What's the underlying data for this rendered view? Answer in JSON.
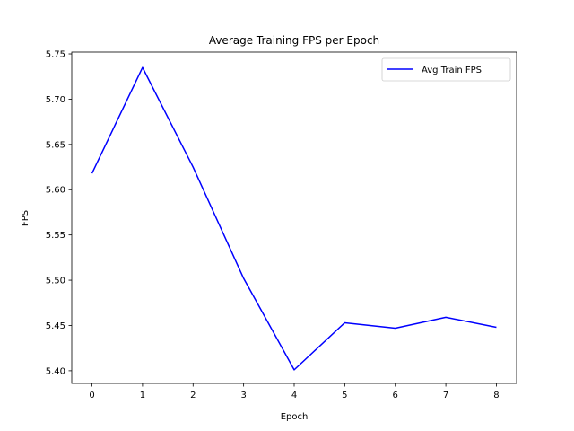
{
  "chart_data": {
    "type": "line",
    "title": "Average Training FPS per Epoch",
    "xlabel": "Epoch",
    "ylabel": "FPS",
    "x": [
      0,
      1,
      2,
      3,
      4,
      5,
      6,
      7,
      8
    ],
    "series": [
      {
        "name": "Avg Train FPS",
        "color": "#0000ff",
        "values": [
          5.618,
          5.735,
          5.625,
          5.502,
          5.401,
          5.453,
          5.447,
          5.459,
          5.448
        ]
      }
    ],
    "xlim": [
      -0.4,
      8.4
    ],
    "ylim": [
      5.386,
      5.752
    ],
    "xticks": [
      0,
      1,
      2,
      3,
      4,
      5,
      6,
      7,
      8
    ],
    "xtick_labels": [
      "0",
      "1",
      "2",
      "3",
      "4",
      "5",
      "6",
      "7",
      "8"
    ],
    "yticks": [
      5.4,
      5.45,
      5.5,
      5.55,
      5.6,
      5.65,
      5.7,
      5.75
    ],
    "ytick_labels": [
      "5.40",
      "5.45",
      "5.50",
      "5.55",
      "5.60",
      "5.65",
      "5.70",
      "5.75"
    ],
    "grid": false,
    "legend": "top-right"
  }
}
